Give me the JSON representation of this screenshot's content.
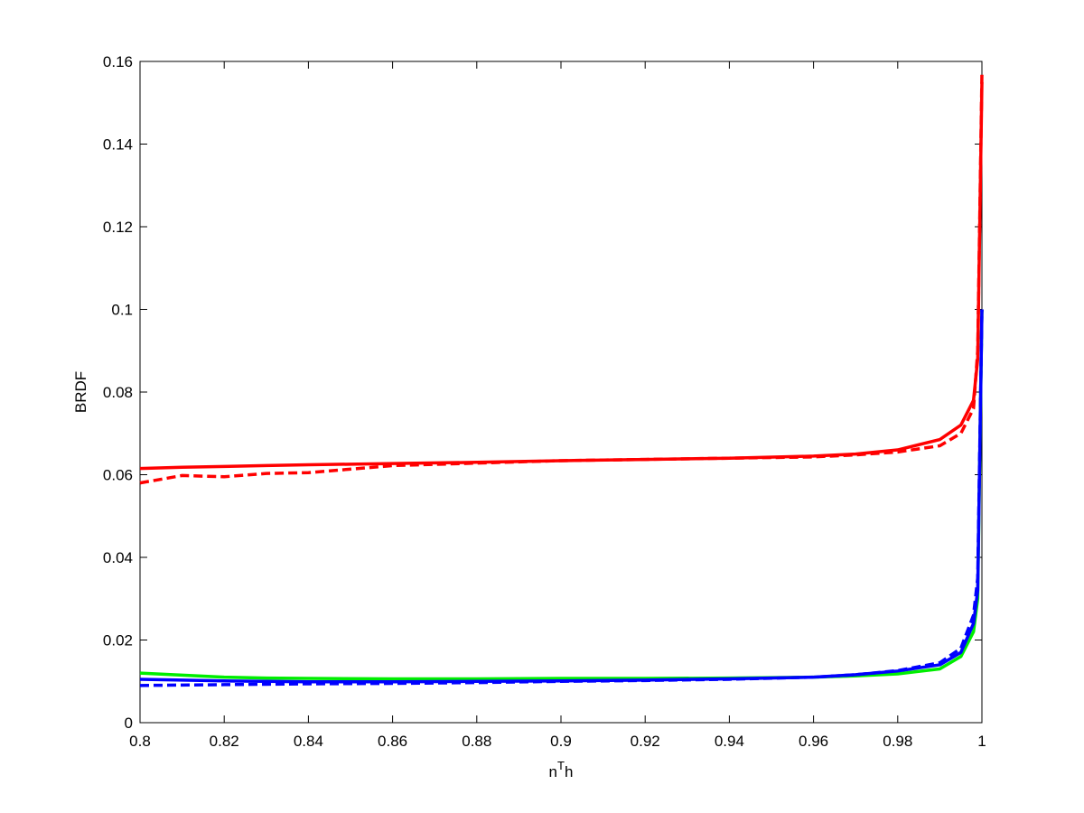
{
  "chart_data": {
    "type": "line",
    "xlabel": [
      "n",
      "T",
      "h"
    ],
    "ylabel": "BRDF",
    "xlim": [
      0.8,
      1
    ],
    "ylim": [
      0,
      0.16
    ],
    "xticks": [
      0.8,
      0.82,
      0.84,
      0.86,
      0.88,
      0.9,
      0.92,
      0.94,
      0.96,
      0.98,
      1
    ],
    "yticks": [
      0,
      0.02,
      0.04,
      0.06,
      0.08,
      0.1,
      0.12,
      0.14,
      0.16
    ],
    "x": [
      0.8,
      0.81,
      0.82,
      0.83,
      0.84,
      0.86,
      0.88,
      0.9,
      0.92,
      0.94,
      0.96,
      0.97,
      0.98,
      0.99,
      0.995,
      0.998,
      0.999,
      1.0
    ],
    "series": [
      {
        "color": "#ff0000",
        "dashed": false,
        "values": [
          0.0615,
          0.0618,
          0.062,
          0.0622,
          0.0624,
          0.0627,
          0.063,
          0.0634,
          0.0637,
          0.064,
          0.0645,
          0.065,
          0.066,
          0.0685,
          0.072,
          0.078,
          0.088,
          0.155
        ]
      },
      {
        "color": "#ff0000",
        "dashed": true,
        "values": [
          0.058,
          0.0598,
          0.0595,
          0.0603,
          0.0605,
          0.0622,
          0.0628,
          0.0634,
          0.0637,
          0.064,
          0.0643,
          0.0648,
          0.0655,
          0.067,
          0.07,
          0.076,
          0.09,
          0.157
        ]
      },
      {
        "color": "#00ee00",
        "dashed": false,
        "values": [
          0.012,
          0.0115,
          0.011,
          0.0108,
          0.0107,
          0.0106,
          0.0106,
          0.0107,
          0.0107,
          0.0108,
          0.011,
          0.0113,
          0.0118,
          0.013,
          0.016,
          0.022,
          0.03,
          0.1
        ]
      },
      {
        "color": "#0000ff",
        "dashed": false,
        "values": [
          0.0105,
          0.0103,
          0.0101,
          0.01,
          0.0099,
          0.0099,
          0.01,
          0.0101,
          0.0103,
          0.0106,
          0.011,
          0.0116,
          0.0125,
          0.014,
          0.017,
          0.024,
          0.032,
          0.1
        ]
      },
      {
        "color": "#0000ff",
        "dashed": true,
        "values": [
          0.009,
          0.0091,
          0.0092,
          0.0093,
          0.0094,
          0.0095,
          0.0097,
          0.01,
          0.0102,
          0.0105,
          0.011,
          0.0116,
          0.0126,
          0.0145,
          0.018,
          0.026,
          0.035,
          0.1
        ]
      }
    ]
  }
}
